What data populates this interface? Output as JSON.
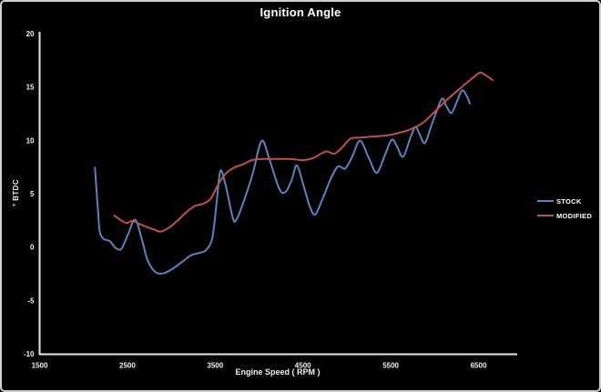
{
  "window_title": "Ignition Angle",
  "colors": {
    "background": "#000000",
    "frame_border": "#cfcfcf",
    "axis": "#e8e8e8",
    "text": "#f2f2f2",
    "stock_line": "#5b83bd",
    "modified_line": "#c0504d"
  },
  "chart_data": {
    "type": "line",
    "title": "Ignition Angle",
    "xlabel": "Engine Speed ( RPM )",
    "ylabel": "° BTDC",
    "xlim": [
      1500,
      7000
    ],
    "ylim": [
      -10,
      20
    ],
    "x_ticks": [
      "1500",
      "2500",
      "3500",
      "4500",
      "5500",
      "6500"
    ],
    "x_tick_values": [
      1500,
      2500,
      3500,
      4500,
      5500,
      6500
    ],
    "y_ticks": [
      "20",
      "15",
      "10",
      "5",
      "0",
      "-5",
      "-10"
    ],
    "y_tick_values": [
      20,
      15,
      10,
      5,
      0,
      -5,
      -10
    ],
    "grid": false,
    "legend_position": "right",
    "series": [
      {
        "name": "STOCK",
        "color": "#5b83bd",
        "points": [
          [
            2130,
            7.5
          ],
          [
            2165,
            3.5
          ],
          [
            2185,
            1.5
          ],
          [
            2230,
            0.8
          ],
          [
            2300,
            0.6
          ],
          [
            2360,
            0.0
          ],
          [
            2420,
            -0.2
          ],
          [
            2460,
            0.3
          ],
          [
            2510,
            1.3
          ],
          [
            2590,
            2.6
          ],
          [
            2670,
            0.6
          ],
          [
            2730,
            -1.2
          ],
          [
            2820,
            -2.3
          ],
          [
            2920,
            -2.4
          ],
          [
            3030,
            -1.9
          ],
          [
            3130,
            -1.3
          ],
          [
            3230,
            -0.7
          ],
          [
            3320,
            -0.5
          ],
          [
            3400,
            -0.2
          ],
          [
            3470,
            1.0
          ],
          [
            3520,
            4.5
          ],
          [
            3560,
            7.2
          ],
          [
            3620,
            5.8
          ],
          [
            3700,
            2.8
          ],
          [
            3740,
            2.6
          ],
          [
            3820,
            4.2
          ],
          [
            3930,
            7.0
          ],
          [
            4030,
            10.0
          ],
          [
            4120,
            8.2
          ],
          [
            4230,
            5.5
          ],
          [
            4300,
            5.2
          ],
          [
            4370,
            6.3
          ],
          [
            4430,
            7.7
          ],
          [
            4500,
            6.0
          ],
          [
            4580,
            3.8
          ],
          [
            4640,
            3.1
          ],
          [
            4720,
            4.5
          ],
          [
            4820,
            6.5
          ],
          [
            4900,
            7.6
          ],
          [
            4980,
            7.4
          ],
          [
            5060,
            8.5
          ],
          [
            5150,
            10.0
          ],
          [
            5250,
            8.4
          ],
          [
            5340,
            7.0
          ],
          [
            5430,
            8.6
          ],
          [
            5510,
            10.1
          ],
          [
            5570,
            9.5
          ],
          [
            5640,
            8.5
          ],
          [
            5720,
            10.2
          ],
          [
            5780,
            11.3
          ],
          [
            5830,
            10.6
          ],
          [
            5890,
            9.8
          ],
          [
            5970,
            11.6
          ],
          [
            6080,
            13.9
          ],
          [
            6130,
            13.3
          ],
          [
            6190,
            12.6
          ],
          [
            6250,
            13.6
          ],
          [
            6310,
            14.7
          ],
          [
            6360,
            14.3
          ],
          [
            6400,
            13.5
          ]
        ]
      },
      {
        "name": "MODIFIED",
        "color": "#c0504d",
        "points": [
          [
            2350,
            3.0
          ],
          [
            2420,
            2.6
          ],
          [
            2490,
            2.3
          ],
          [
            2560,
            2.5
          ],
          [
            2640,
            2.2
          ],
          [
            2730,
            1.9
          ],
          [
            2800,
            1.7
          ],
          [
            2880,
            1.5
          ],
          [
            2980,
            1.9
          ],
          [
            3080,
            2.6
          ],
          [
            3170,
            3.3
          ],
          [
            3270,
            3.9
          ],
          [
            3360,
            4.1
          ],
          [
            3450,
            4.6
          ],
          [
            3540,
            6.0
          ],
          [
            3630,
            7.0
          ],
          [
            3720,
            7.5
          ],
          [
            3820,
            7.8
          ],
          [
            3920,
            8.2
          ],
          [
            4050,
            8.3
          ],
          [
            4200,
            8.3
          ],
          [
            4350,
            8.3
          ],
          [
            4500,
            8.2
          ],
          [
            4620,
            8.4
          ],
          [
            4760,
            9.0
          ],
          [
            4860,
            8.8
          ],
          [
            4960,
            9.5
          ],
          [
            5040,
            10.2
          ],
          [
            5150,
            10.3
          ],
          [
            5300,
            10.4
          ],
          [
            5450,
            10.5
          ],
          [
            5570,
            10.7
          ],
          [
            5700,
            11.0
          ],
          [
            5850,
            11.6
          ],
          [
            5960,
            12.4
          ],
          [
            6060,
            13.2
          ],
          [
            6160,
            14.0
          ],
          [
            6260,
            14.7
          ],
          [
            6360,
            15.4
          ],
          [
            6450,
            16.0
          ],
          [
            6520,
            16.4
          ],
          [
            6590,
            16.1
          ],
          [
            6660,
            15.7
          ]
        ]
      }
    ]
  }
}
